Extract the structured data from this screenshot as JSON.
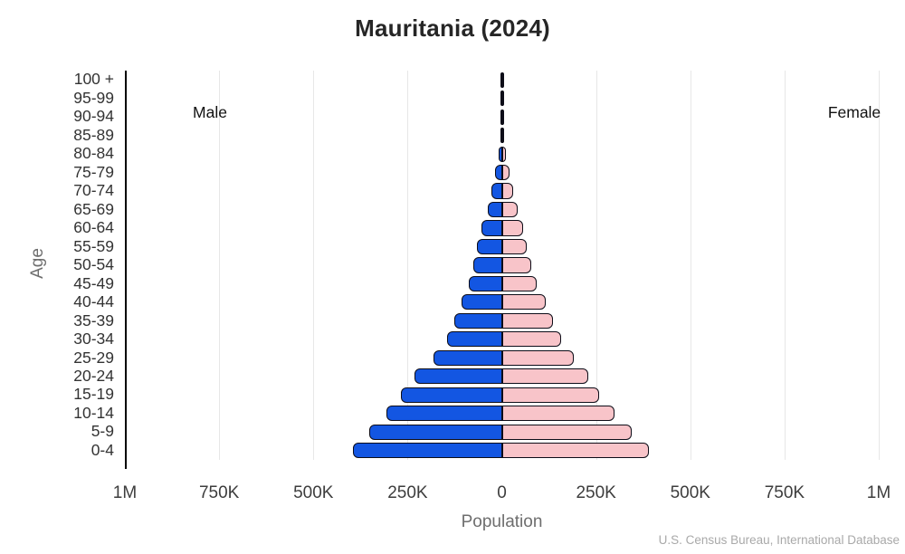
{
  "title": "Mauritania (2024)",
  "side_labels": {
    "male": "Male",
    "female": "Female"
  },
  "axis": {
    "y_label": "Age",
    "x_label": "Population"
  },
  "source": "U.S. Census Bureau, International Database",
  "colors": {
    "male_fill": "#1356e2",
    "female_fill": "#f8c4c9",
    "outline": "#0d0d18",
    "grid": "#e7e7e7",
    "axis_line": "#000000"
  },
  "chart_data": {
    "type": "bar",
    "subtype": "population-pyramid",
    "title": "Mauritania (2024)",
    "xlabel": "Population",
    "ylabel": "Age",
    "grid": true,
    "xlim": [
      -1000000,
      1000000
    ],
    "x_ticks": [
      "1M",
      "750K",
      "500K",
      "250K",
      "0",
      "250K",
      "500K",
      "750K",
      "1M"
    ],
    "x_tick_values": [
      -1000000,
      -750000,
      -500000,
      -250000,
      0,
      250000,
      500000,
      750000,
      1000000
    ],
    "categories": [
      "100 +",
      "95-99",
      "90-94",
      "85-89",
      "80-84",
      "75-79",
      "70-74",
      "65-69",
      "60-64",
      "55-59",
      "50-54",
      "45-49",
      "40-44",
      "35-39",
      "30-34",
      "25-29",
      "20-24",
      "15-19",
      "10-14",
      "5-9",
      "0-4"
    ],
    "series": [
      {
        "name": "Male",
        "values": [
          500,
          1000,
          2000,
          4000,
          9000,
          19000,
          28000,
          38000,
          54000,
          67000,
          76000,
          87000,
          107000,
          125000,
          146000,
          181000,
          232000,
          267000,
          305000,
          352000,
          396000
        ]
      },
      {
        "name": "Female",
        "values": [
          700,
          1500,
          3000,
          5000,
          11000,
          21000,
          30000,
          41000,
          56000,
          67000,
          77000,
          93000,
          117000,
          135000,
          157000,
          190000,
          230000,
          259000,
          300000,
          344000,
          389000
        ]
      }
    ],
    "legend_position": "male-left-female-right-in-plot"
  }
}
